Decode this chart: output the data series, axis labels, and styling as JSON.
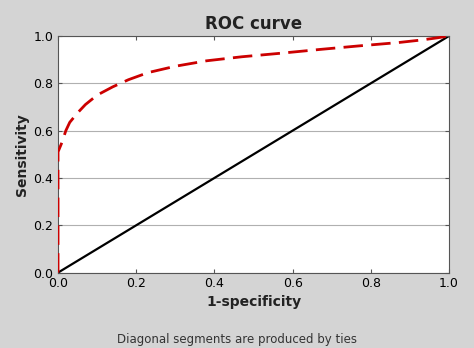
{
  "title": "ROC curve",
  "xlabel": "1-specificity",
  "ylabel": "Sensitivity",
  "footnote": "Diagonal segments are produced by ties",
  "xlim": [
    0.0,
    1.0
  ],
  "ylim": [
    0.0,
    1.0
  ],
  "xticks": [
    0.0,
    0.2,
    0.4,
    0.6,
    0.8,
    1.0
  ],
  "yticks": [
    0.0,
    0.2,
    0.4,
    0.6,
    0.8,
    1.0
  ],
  "diagonal_color": "#000000",
  "roc_color": "#cc0000",
  "background_color": "#d4d4d4",
  "plot_bg_color": "#ffffff",
  "grid_color": "#b0b0b0",
  "spine_color": "#555555",
  "roc_x": [
    0.0,
    0.0,
    0.005,
    0.01,
    0.015,
    0.02,
    0.03,
    0.05,
    0.07,
    0.1,
    0.14,
    0.18,
    0.23,
    0.3,
    0.38,
    0.47,
    0.57,
    0.67,
    0.77,
    0.87,
    0.93,
    0.97,
    1.0
  ],
  "roc_y": [
    0.0,
    0.51,
    0.53,
    0.55,
    0.575,
    0.6,
    0.635,
    0.675,
    0.71,
    0.75,
    0.785,
    0.815,
    0.845,
    0.872,
    0.895,
    0.912,
    0.927,
    0.943,
    0.958,
    0.972,
    0.983,
    0.992,
    1.0
  ]
}
